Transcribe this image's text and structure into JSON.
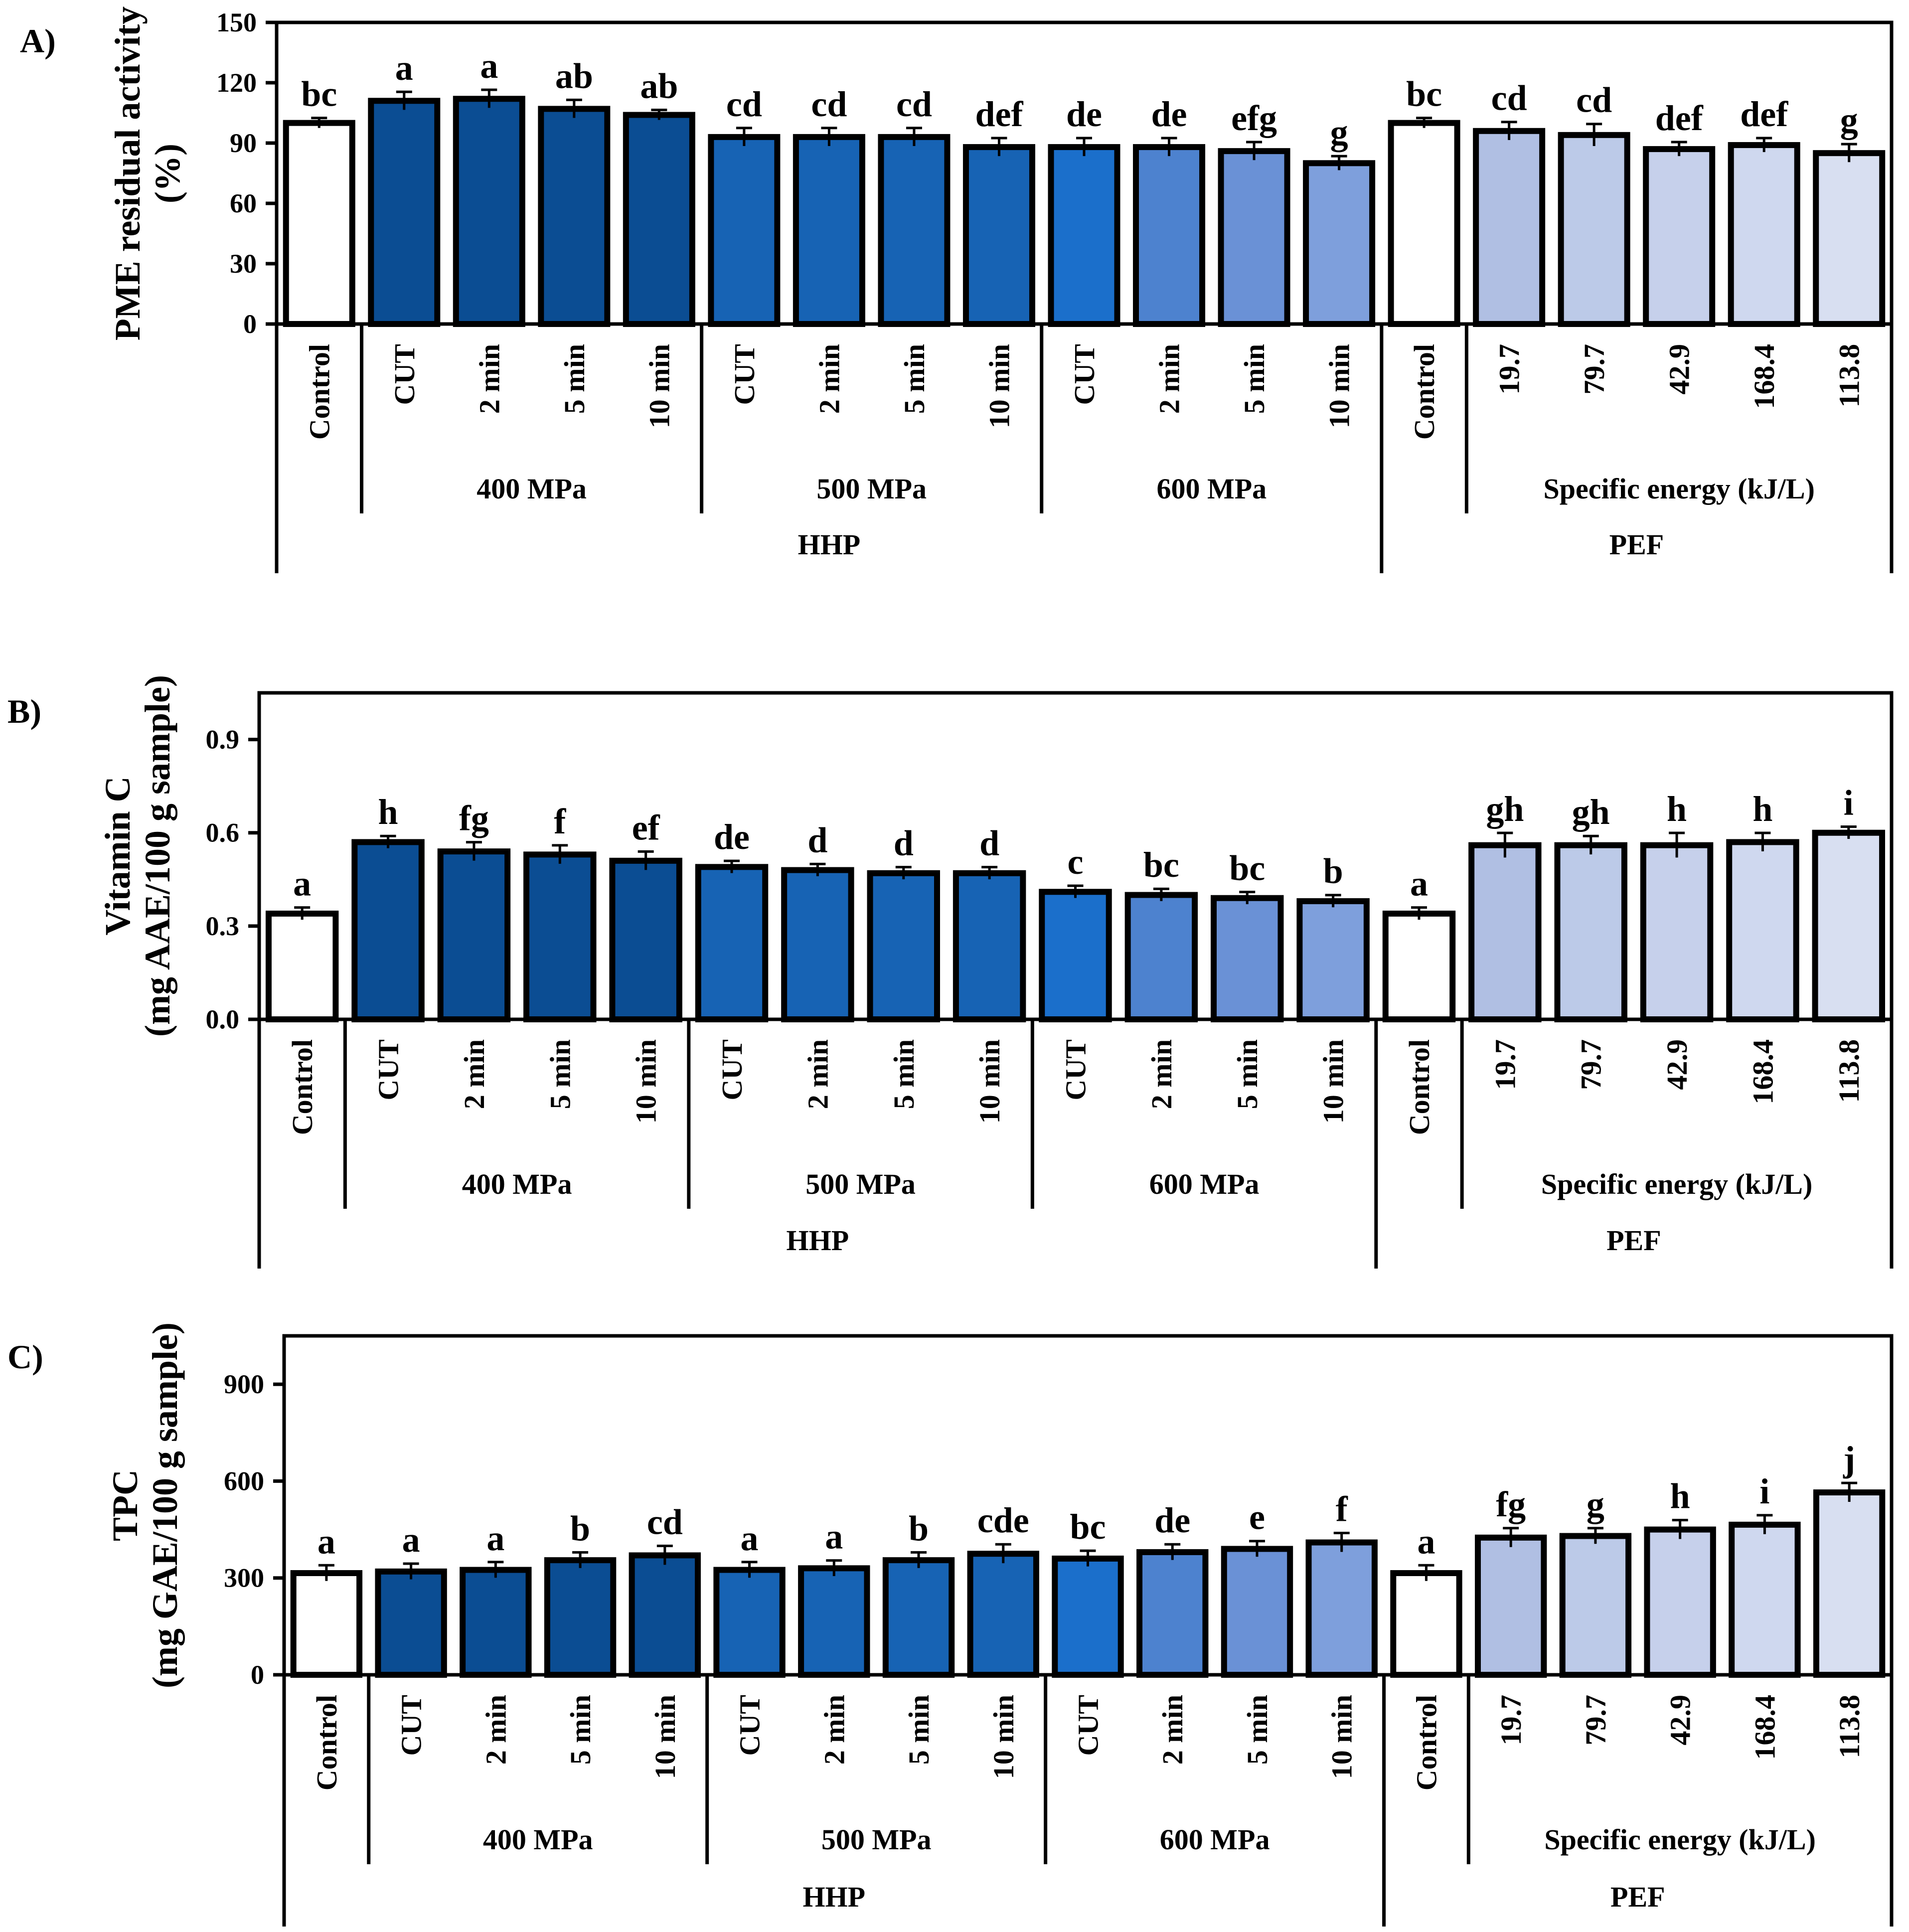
{
  "figure": {
    "panels": [
      "A)",
      "B)",
      "C)"
    ]
  },
  "colors": {
    "control": "#ffffff",
    "hhp400": "#0b4d93",
    "hhp500": "#1763b4",
    "hhp600_cut": "#1b6fcb",
    "hhp600_2": "#4d82cf",
    "hhp600_5": "#6a91d6",
    "hhp600_10": "#7e9fdc",
    "pef1": "#b0bfe3",
    "pef2": "#bccae8",
    "pef3": "#c6d0eb",
    "pef4": "#cfd8ef",
    "pef5": "#d8dff1",
    "stroke": "#000000"
  },
  "chart_data": [
    {
      "panel": "A)",
      "type": "bar",
      "ylabel": [
        "PME residual activity",
        "(%)"
      ],
      "ylim": [
        0,
        150
      ],
      "yticks": [
        "0",
        "30",
        "60",
        "90",
        "120",
        "150"
      ],
      "categories": [
        "Control",
        "CUT",
        "2 min",
        "5 min",
        "10 min",
        "CUT",
        "2 min",
        "5 min",
        "10 min",
        "CUT",
        "2 min",
        "5 min",
        "10 min",
        "Control",
        "19.7",
        "79.7",
        "42.9",
        "168.4",
        "113.8"
      ],
      "values": [
        100,
        111,
        112,
        107,
        104,
        93,
        93,
        93,
        88,
        88,
        88,
        86,
        80,
        100,
        96,
        94,
        87,
        89,
        85
      ],
      "errors": [
        1,
        3,
        3,
        3,
        1,
        3,
        3,
        3,
        3,
        3,
        3,
        3,
        2,
        1,
        3,
        4,
        2,
        2,
        3
      ],
      "letters": [
        "bc",
        "a",
        "a",
        "ab",
        "ab",
        "cd",
        "cd",
        "cd",
        "def",
        "de",
        "de",
        "efg",
        "g",
        "bc",
        "cd",
        "cd",
        "def",
        "def",
        "g"
      ],
      "groups": [
        "400 MPa",
        "500 MPa",
        "600 MPa",
        "Specific energy (kJ/L)"
      ],
      "supergroups": [
        "HHP",
        "PEF"
      ]
    },
    {
      "panel": "B)",
      "type": "bar",
      "ylabel": [
        "Vitamin C",
        "(mg AAE/100 g sample)"
      ],
      "ylim": [
        0,
        1.05
      ],
      "yticks": [
        "0.0",
        "0.3",
        "0.6",
        "0.9"
      ],
      "categories": [
        "Control",
        "CUT",
        "2 min",
        "5 min",
        "10 min",
        "CUT",
        "2 min",
        "5 min",
        "10 min",
        "CUT",
        "2 min",
        "5 min",
        "10 min",
        "Control",
        "19.7",
        "79.7",
        "42.9",
        "168.4",
        "113.8"
      ],
      "values": [
        0.34,
        0.57,
        0.54,
        0.53,
        0.51,
        0.49,
        0.48,
        0.47,
        0.47,
        0.41,
        0.4,
        0.39,
        0.38,
        0.34,
        0.56,
        0.56,
        0.56,
        0.57,
        0.6
      ],
      "errors": [
        0.01,
        0.01,
        0.02,
        0.02,
        0.02,
        0.01,
        0.01,
        0.01,
        0.01,
        0.01,
        0.01,
        0.01,
        0.01,
        0.01,
        0.03,
        0.02,
        0.03,
        0.02,
        0.01
      ],
      "letters": [
        "a",
        "h",
        "fg",
        "f",
        "ef",
        "de",
        "d",
        "d",
        "d",
        "c",
        "bc",
        "bc",
        "b",
        "a",
        "gh",
        "gh",
        "h",
        "h",
        "i"
      ],
      "groups": [
        "400 MPa",
        "500 MPa",
        "600 MPa",
        "Specific energy (kJ/L)"
      ],
      "supergroups": [
        "HHP",
        "PEF"
      ]
    },
    {
      "panel": "C)",
      "type": "bar",
      "ylabel": [
        "TPC",
        "(mg GAE/100 g sample)"
      ],
      "ylim": [
        0,
        1050
      ],
      "yticks": [
        "0",
        "300",
        "600",
        "900"
      ],
      "categories": [
        "Control",
        "CUT",
        "2 min",
        "5 min",
        "10 min",
        "CUT",
        "2 min",
        "5 min",
        "10 min",
        "CUT",
        "2 min",
        "5 min",
        "10 min",
        "Control",
        "19.7",
        "79.7",
        "42.9",
        "168.4",
        "113.8"
      ],
      "values": [
        315,
        320,
        325,
        355,
        370,
        325,
        330,
        355,
        375,
        360,
        380,
        390,
        410,
        315,
        425,
        430,
        450,
        465,
        565
      ],
      "errors": [
        15,
        15,
        15,
        15,
        20,
        15,
        15,
        15,
        20,
        15,
        15,
        15,
        20,
        15,
        20,
        15,
        20,
        20,
        20
      ],
      "letters": [
        "a",
        "a",
        "a",
        "b",
        "cd",
        "a",
        "a",
        "b",
        "cde",
        "bc",
        "de",
        "e",
        "f",
        "a",
        "fg",
        "g",
        "h",
        "i",
        "j"
      ],
      "groups": [
        "400 MPa",
        "500 MPa",
        "600 MPa",
        "Specific energy (kJ/L)"
      ],
      "supergroups": [
        "HHP",
        "PEF"
      ]
    }
  ]
}
